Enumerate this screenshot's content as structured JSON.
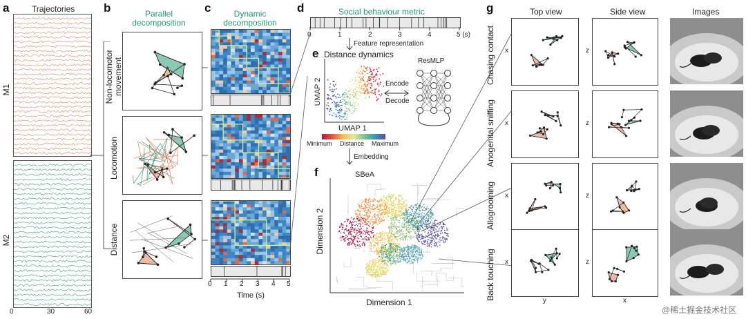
{
  "panels": {
    "a": "a",
    "b": "b",
    "c": "c",
    "d": "d",
    "e": "e",
    "f": "f",
    "g": "g"
  },
  "panel_a": {
    "title": "Trajectories",
    "m1": "M1",
    "m2": "M2",
    "ticks": [
      "0",
      "30",
      "60"
    ]
  },
  "panel_b": {
    "title": "Parallel\ndecomposition",
    "rows": [
      "Non-locomotor\nmovement",
      "Locomotion",
      "Distance"
    ]
  },
  "panel_c": {
    "title": "Dynamic\ndecomposition",
    "xlabel": "Time (s)",
    "ticks": [
      "0",
      "1",
      "2",
      "3",
      "4",
      "5"
    ]
  },
  "panel_d": {
    "title": "Social behaviour metric",
    "ticks": [
      "0",
      "1",
      "2",
      "3",
      "4",
      "5 (s)"
    ],
    "feature": "Feature representation"
  },
  "panel_e": {
    "title": "Distance dynamics",
    "ylabel": "UMAP 2",
    "xlabel": "UMAP 1",
    "resmlp": "ResMLP",
    "encode": "Encode",
    "decode": "Decode",
    "cbar": [
      "Minimum",
      "Distance",
      "Maximum"
    ],
    "embedding": "Embedding"
  },
  "panel_f": {
    "title": "SBeA",
    "xlabel": "Dimension 1",
    "ylabel": "Dimension 2"
  },
  "panel_g": {
    "col_titles": [
      "Top view",
      "Side view",
      "Images"
    ],
    "rows": [
      "Chasing contact",
      "Anogenital sniffing",
      "Allogrooming",
      "Back touching"
    ],
    "x_axis": "x",
    "y_axis": "y",
    "z_axis": "z"
  },
  "watermark": "@稀土掘金技术社区",
  "colors": {
    "orange": "#e0805a",
    "green": "#2f9a74",
    "accent": "#1e9a6a"
  }
}
